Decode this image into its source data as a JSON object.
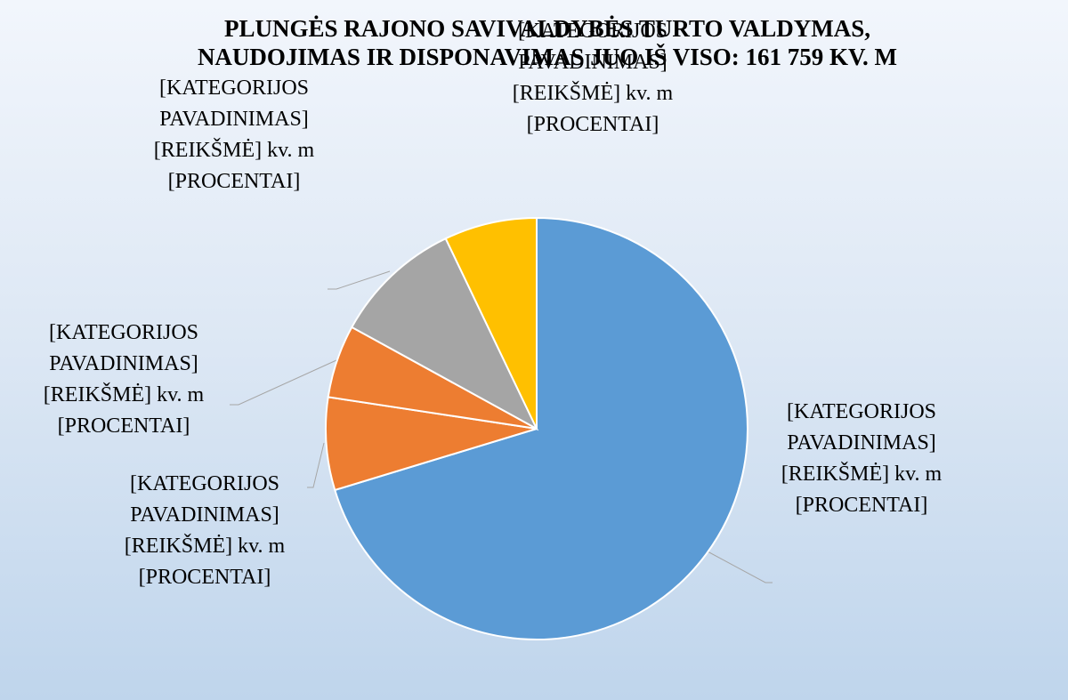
{
  "chart_data": {
    "type": "pie",
    "title": "PLUNGĖS RAJONO SAVIVALDYBĖS TURTO VALDYMAS, NAUDOJIMAS IR DISPONAVIMAS JUO IŠ VISO: 161 759 KV. M",
    "categories": [
      null,
      null,
      null,
      null,
      null
    ],
    "values": [
      70.3,
      7.1,
      5.6,
      9.9,
      7.1
    ],
    "value_labels": [
      "[KATEGORIJOS PAVADINIMAS] [REIKŠMĖ] kv. m [PROCENTAI]",
      "[KATEGORIJOS PAVADINIMAS] [REIKŠMĖ] kv. m [PROCENTAI]",
      "[KATEGORIJOS PAVADINIMAS] [REIKŠMĖ] kv. m [PROCENTAI]",
      "[KATEGORIJOS PAVADINIMAS] [REIKŠMĖ] kv. m [PROCENTAI]",
      "[KATEGORIJOS PAVADINIMAS] [REIKŠMĖ] kv. m [PROCENTAI]"
    ],
    "colors": [
      "#5b9bd5",
      "#ed7d31",
      "#ed7d31",
      "#a5a5a5",
      "#ffc000"
    ]
  }
}
